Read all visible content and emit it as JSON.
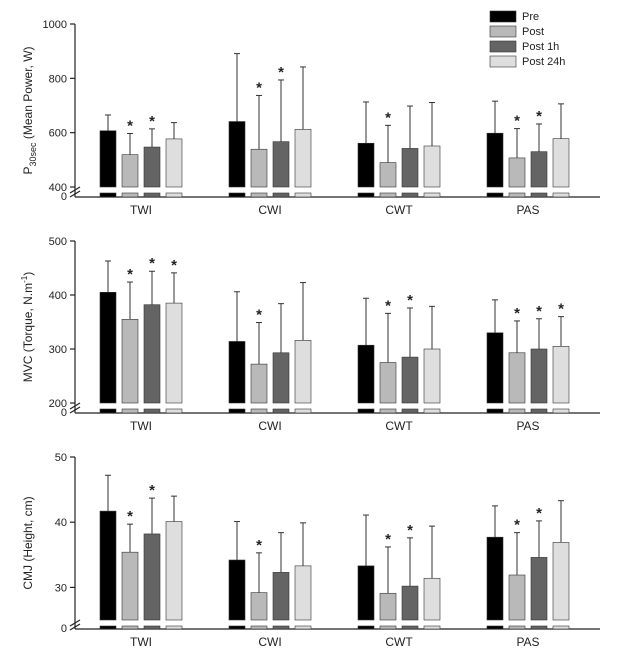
{
  "colors": {
    "Pre": "#000000",
    "Post": "#b9b9b9",
    "Post 1h": "#646464",
    "Post 24h": "#dedede",
    "axis": "#222222"
  },
  "legend": {
    "position": "top-right",
    "items": [
      "Pre",
      "Post",
      "Post 1h",
      "Post 24h"
    ]
  },
  "chart_data": [
    {
      "type": "bar",
      "id": "power",
      "ylabel": {
        "main": "P",
        "sub": "30sec",
        "rest": " (Mean Power, W)"
      },
      "categories": [
        "TWI",
        "CWI",
        "CWT",
        "PAS"
      ],
      "ylim": [
        400,
        1000
      ],
      "yticks": [
        400,
        600,
        800,
        1000
      ],
      "axis_break": true,
      "break_zero_label": "0",
      "series": [
        {
          "name": "Pre",
          "values": [
            607,
            641,
            561,
            598
          ],
          "errors": [
            58,
            250,
            152,
            118
          ],
          "sig": [
            false,
            false,
            false,
            false
          ]
        },
        {
          "name": "Post",
          "values": [
            519,
            539,
            490,
            507
          ],
          "errors": [
            78,
            198,
            137,
            108
          ],
          "sig": [
            true,
            true,
            true,
            true
          ]
        },
        {
          "name": "Post 1h",
          "values": [
            547,
            567,
            542,
            530
          ],
          "errors": [
            67,
            227,
            156,
            102
          ],
          "sig": [
            true,
            true,
            false,
            true
          ]
        },
        {
          "name": "Post 24h",
          "values": [
            577,
            612,
            551,
            578
          ],
          "errors": [
            60,
            230,
            160,
            128
          ],
          "sig": [
            false,
            false,
            false,
            false
          ]
        }
      ]
    },
    {
      "type": "bar",
      "id": "mvc",
      "ylabel": {
        "main": "MVC (Torque, N.m",
        "sup": "-1",
        "rest": ")"
      },
      "categories": [
        "TWI",
        "CWI",
        "CWT",
        "PAS"
      ],
      "ylim": [
        200,
        500
      ],
      "yticks": [
        200,
        300,
        400,
        500
      ],
      "axis_break": true,
      "break_zero_label": "0",
      "series": [
        {
          "name": "Pre",
          "values": [
            405,
            314,
            307,
            330
          ],
          "errors": [
            58,
            92,
            87,
            61
          ],
          "sig": [
            false,
            false,
            false,
            false
          ]
        },
        {
          "name": "Post",
          "values": [
            355,
            272,
            275,
            293
          ],
          "errors": [
            69,
            77,
            91,
            59
          ],
          "sig": [
            true,
            true,
            true,
            true
          ]
        },
        {
          "name": "Post 1h",
          "values": [
            382,
            293,
            285,
            300
          ],
          "errors": [
            62,
            91,
            91,
            56
          ],
          "sig": [
            true,
            false,
            true,
            true
          ]
        },
        {
          "name": "Post 24h",
          "values": [
            385,
            316,
            300,
            305
          ],
          "errors": [
            56,
            107,
            79,
            55
          ],
          "sig": [
            true,
            false,
            false,
            true
          ]
        }
      ]
    },
    {
      "type": "bar",
      "id": "cmj",
      "ylabel": {
        "main": "CMJ (Height, cm)"
      },
      "categories": [
        "TWI",
        "CWI",
        "CWT",
        "PAS"
      ],
      "ylim": [
        25,
        50
      ],
      "yticks": [
        30,
        40,
        50
      ],
      "axis_break": true,
      "break_zero_label": "0",
      "series": [
        {
          "name": "Pre",
          "values": [
            41.7,
            34.2,
            33.3,
            37.7
          ],
          "errors": [
            5.5,
            5.9,
            7.8,
            4.8
          ],
          "sig": [
            false,
            false,
            false,
            false
          ]
        },
        {
          "name": "Post",
          "values": [
            35.4,
            29.2,
            29.1,
            31.9
          ],
          "errors": [
            4.3,
            6.1,
            7.1,
            6.5
          ],
          "sig": [
            true,
            true,
            true,
            true
          ]
        },
        {
          "name": "Post 1h",
          "values": [
            38.2,
            32.3,
            30.2,
            34.6
          ],
          "errors": [
            5.5,
            6.1,
            7.4,
            5.6
          ],
          "sig": [
            true,
            false,
            true,
            true
          ]
        },
        {
          "name": "Post 24h",
          "values": [
            40.1,
            33.3,
            31.4,
            36.9
          ],
          "errors": [
            3.9,
            6.6,
            8.0,
            6.4
          ],
          "sig": [
            false,
            false,
            false,
            false
          ]
        }
      ]
    }
  ]
}
